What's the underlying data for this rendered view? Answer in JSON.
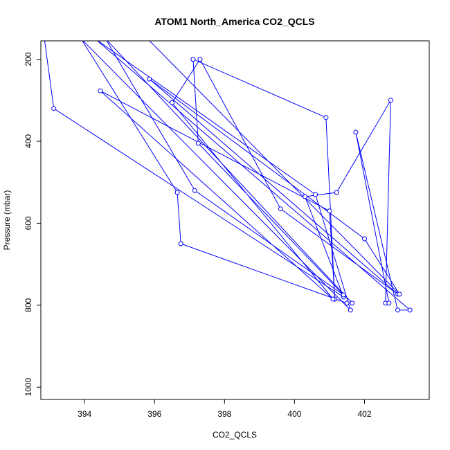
{
  "chart_data": {
    "type": "line",
    "title": "ATOM1 North_America CO2_QCLS",
    "xlabel": "CO2_QCLS",
    "ylabel": "Pressure (mbar)",
    "xlim": [
      392.75,
      403.85
    ],
    "ylim": [
      1030,
      155
    ],
    "y_reversed": true,
    "grid": false,
    "x_ticks": [
      394,
      396,
      398,
      400,
      402
    ],
    "y_ticks": [
      200,
      400,
      600,
      800,
      1000
    ],
    "series_color": "#0000ff",
    "series": [
      {
        "name": "",
        "points": [
          [
            392.85,
            150
          ],
          [
            393.12,
            320
          ],
          [
            401.4,
            780
          ],
          [
            400.3,
            535
          ],
          [
            401.2,
            525
          ],
          [
            402.75,
            300
          ],
          [
            402.6,
            795
          ],
          [
            402.7,
            795
          ],
          [
            401.75,
            378
          ],
          [
            402.95,
            812
          ],
          [
            403.3,
            812
          ],
          [
            394.3,
            150
          ],
          [
            400.6,
            530
          ],
          [
            401.6,
            812
          ],
          [
            393.9,
            150
          ],
          [
            396.65,
            525
          ],
          [
            396.75,
            650
          ],
          [
            401.5,
            795
          ],
          [
            401.65,
            795
          ],
          [
            394.6,
            150
          ],
          [
            397.15,
            520
          ],
          [
            401.4,
            775
          ],
          [
            397.25,
            405
          ],
          [
            397.1,
            200
          ],
          [
            400.9,
            342
          ],
          [
            401.15,
            785
          ],
          [
            401.0,
            570
          ],
          [
            394.45,
            277
          ],
          [
            401.1,
            785
          ],
          [
            396.5,
            306
          ],
          [
            397.3,
            200
          ],
          [
            399.6,
            565
          ],
          [
            402.95,
            773
          ],
          [
            395.85,
            248
          ],
          [
            402.0,
            638
          ],
          [
            403.0,
            773
          ],
          [
            395.8,
            150
          ],
          [
            395.9,
            150
          ]
        ]
      }
    ]
  }
}
